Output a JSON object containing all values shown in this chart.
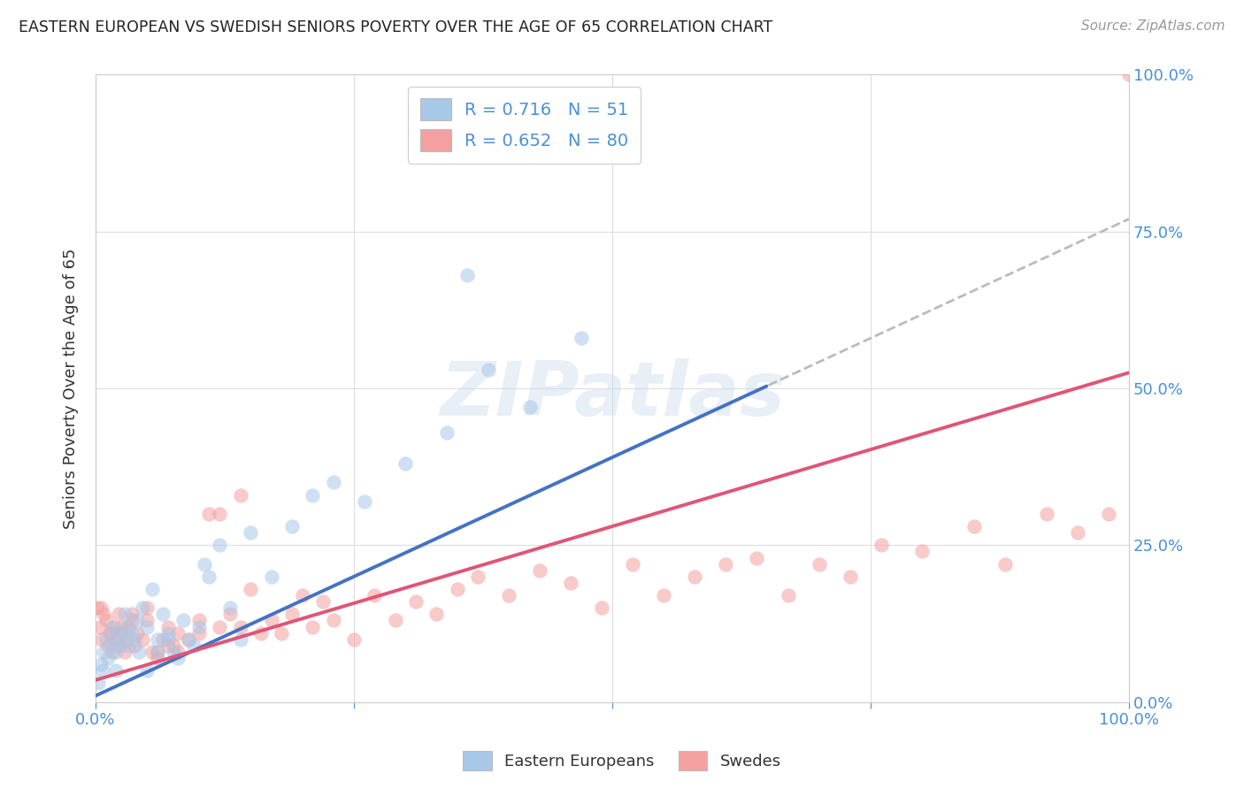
{
  "title": "EASTERN EUROPEAN VS SWEDISH SENIORS POVERTY OVER THE AGE OF 65 CORRELATION CHART",
  "source": "Source: ZipAtlas.com",
  "ylabel": "Seniors Poverty Over the Age of 65",
  "watermark_text": "ZIPatlas",
  "blue_R": 0.716,
  "blue_N": 51,
  "pink_R": 0.652,
  "pink_N": 80,
  "blue_color": "#a8c8e8",
  "pink_color": "#f4a0a0",
  "blue_line_color": "#4472c4",
  "pink_line_color": "#e05575",
  "dashed_line_color": "#bbbbbb",
  "legend_label_blue": "Eastern Europeans",
  "legend_label_pink": "Swedes",
  "background_color": "#ffffff",
  "grid_color": "#dddddd",
  "title_color": "#222222",
  "tick_label_color": "#4a90d9",
  "ylabel_color": "#333333",
  "blue_slope": 0.76,
  "blue_intercept": 1.0,
  "blue_solid_cutoff": 65,
  "pink_slope": 0.49,
  "pink_intercept": 3.5,
  "blue_x": [
    0.3,
    0.5,
    0.7,
    0.8,
    1.0,
    1.2,
    1.5,
    1.8,
    2.0,
    2.2,
    2.5,
    2.8,
    3.0,
    3.2,
    3.5,
    3.8,
    4.0,
    4.2,
    4.5,
    5.0,
    5.5,
    6.0,
    6.5,
    7.0,
    7.5,
    8.0,
    8.5,
    9.0,
    9.5,
    10.0,
    10.5,
    11.0,
    12.0,
    13.0,
    14.0,
    15.0,
    17.0,
    19.0,
    21.0,
    23.0,
    26.0,
    30.0,
    34.0,
    38.0,
    42.0,
    47.0,
    5.0,
    6.0,
    7.0,
    2.0,
    36.0
  ],
  "blue_y": [
    3,
    6,
    5,
    8,
    10,
    7,
    12,
    9,
    8,
    11,
    10,
    14,
    12,
    9,
    11,
    10,
    13,
    8,
    15,
    12,
    18,
    10,
    14,
    11,
    8,
    7,
    13,
    10,
    9,
    12,
    22,
    20,
    25,
    15,
    10,
    27,
    20,
    28,
    33,
    35,
    32,
    38,
    43,
    53,
    47,
    58,
    5,
    8,
    10,
    5,
    68
  ],
  "pink_x": [
    0.2,
    0.4,
    0.6,
    0.8,
    1.0,
    1.2,
    1.4,
    1.6,
    1.8,
    2.0,
    2.2,
    2.4,
    2.6,
    2.8,
    3.0,
    3.2,
    3.5,
    3.8,
    4.0,
    4.5,
    5.0,
    5.5,
    6.0,
    6.5,
    7.0,
    7.5,
    8.0,
    9.0,
    10.0,
    11.0,
    12.0,
    13.0,
    14.0,
    15.0,
    16.0,
    17.0,
    18.0,
    19.0,
    20.0,
    21.0,
    22.0,
    23.0,
    25.0,
    27.0,
    29.0,
    31.0,
    33.0,
    35.0,
    37.0,
    40.0,
    43.0,
    46.0,
    49.0,
    52.0,
    55.0,
    58.0,
    61.0,
    64.0,
    67.0,
    70.0,
    73.0,
    76.0,
    80.0,
    85.0,
    88.0,
    92.0,
    95.0,
    98.0,
    0.5,
    1.5,
    2.5,
    3.5,
    5.0,
    6.0,
    7.0,
    8.0,
    10.0,
    12.0,
    100.0,
    14.0
  ],
  "pink_y": [
    15,
    12,
    10,
    14,
    13,
    9,
    11,
    8,
    12,
    10,
    14,
    9,
    11,
    8,
    10,
    12,
    14,
    9,
    11,
    10,
    13,
    8,
    7,
    10,
    12,
    9,
    11,
    10,
    13,
    30,
    30,
    14,
    12,
    18,
    11,
    13,
    11,
    14,
    17,
    12,
    16,
    13,
    10,
    17,
    13,
    16,
    14,
    18,
    20,
    17,
    21,
    19,
    15,
    22,
    17,
    20,
    22,
    23,
    17,
    22,
    20,
    25,
    24,
    28,
    22,
    30,
    27,
    30,
    15,
    11,
    12,
    13,
    15,
    8,
    9,
    8,
    11,
    12,
    100,
    33
  ]
}
